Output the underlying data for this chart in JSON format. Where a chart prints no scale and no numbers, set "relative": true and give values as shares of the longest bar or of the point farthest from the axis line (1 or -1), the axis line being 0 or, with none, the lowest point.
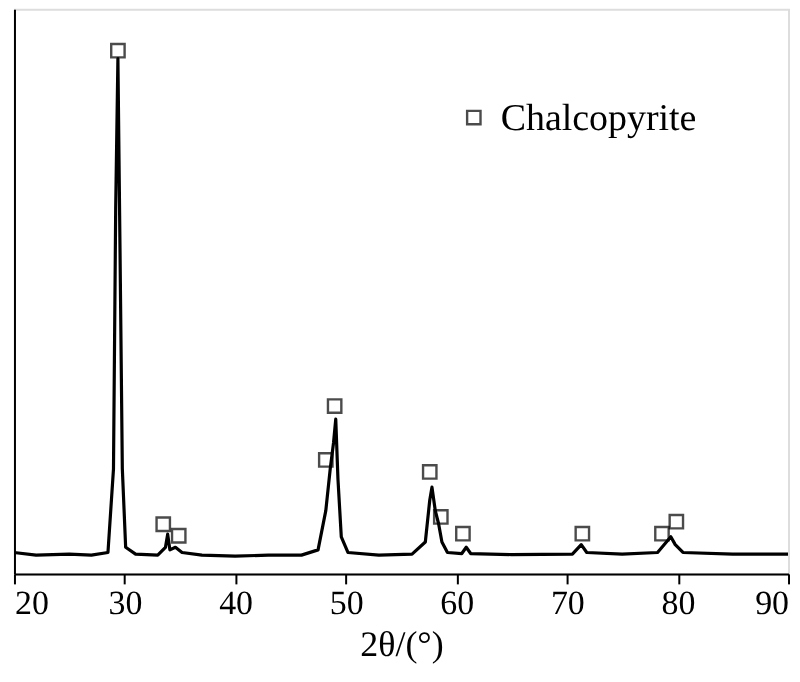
{
  "chart_data": {
    "type": "line",
    "xlabel": "2θ/(°)",
    "relative": true,
    "xlim": [
      20,
      90
    ],
    "xticks": [
      20,
      30,
      40,
      50,
      60,
      70,
      80,
      90
    ],
    "grid": false,
    "legend": "top right",
    "tick_labels": "x",
    "series": [
      {
        "color": "#000000",
        "line_style": "solid",
        "x": [
          20,
          22,
          25,
          27,
          28.5,
          29.0,
          29.2,
          29.4,
          29.6,
          29.8,
          30.1,
          31,
          33,
          33.7,
          33.9,
          34.1,
          34.6,
          35.2,
          37,
          40,
          43,
          46,
          47.5,
          48.2,
          48.6,
          48.9,
          49.1,
          49.3,
          49.6,
          50.2,
          53,
          56,
          57.2,
          57.6,
          57.8,
          58.1,
          58.4,
          58.7,
          59.2,
          60.5,
          60.9,
          61.3,
          65,
          70.5,
          71.3,
          71.8,
          75,
          78.2,
          79,
          79.4,
          79.8,
          80.5,
          85,
          90
        ],
        "values": [
          0.04,
          0.035,
          0.037,
          0.035,
          0.04,
          0.2,
          0.7,
          0.985,
          0.6,
          0.2,
          0.05,
          0.037,
          0.035,
          0.05,
          0.075,
          0.045,
          0.05,
          0.04,
          0.035,
          0.033,
          0.035,
          0.035,
          0.045,
          0.12,
          0.2,
          0.25,
          0.295,
          0.18,
          0.07,
          0.04,
          0.035,
          0.037,
          0.06,
          0.14,
          0.165,
          0.12,
          0.095,
          0.06,
          0.04,
          0.038,
          0.05,
          0.038,
          0.036,
          0.037,
          0.055,
          0.04,
          0.037,
          0.04,
          0.06,
          0.07,
          0.055,
          0.04,
          0.037,
          0.037
        ]
      },
      {
        "type": "scatter",
        "name": "Chalcopyrite",
        "color": "#000000",
        "marker": "square",
        "x": [
          29.4,
          33.5,
          34.9,
          48.2,
          49.0,
          57.6,
          58.6,
          60.6,
          71.4,
          78.6,
          79.9
        ],
        "values": [
          1.0,
          0.094,
          0.072,
          0.217,
          0.32,
          0.194,
          0.108,
          0.076,
          0.076,
          0.076,
          0.099
        ]
      }
    ]
  }
}
